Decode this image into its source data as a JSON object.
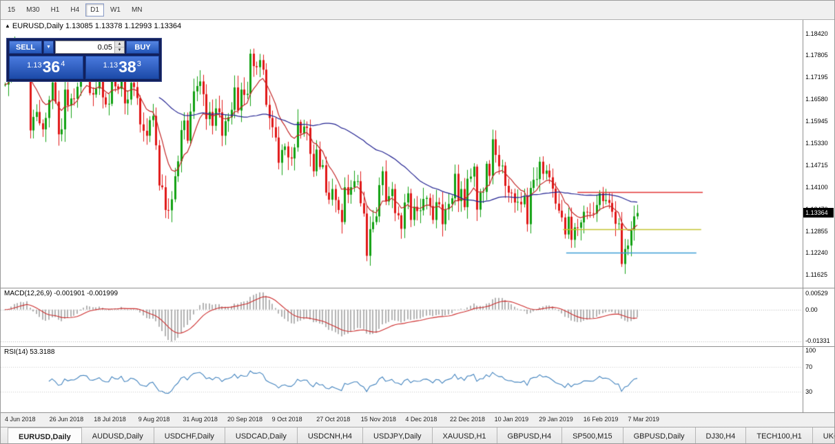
{
  "toolbar": {
    "timeframes": [
      {
        "label": "15",
        "active": false
      },
      {
        "label": "M30",
        "active": false
      },
      {
        "label": "H1",
        "active": false
      },
      {
        "label": "H4",
        "active": false
      },
      {
        "label": "D1",
        "active": true
      },
      {
        "label": "W1",
        "active": false
      },
      {
        "label": "MN",
        "active": false
      }
    ]
  },
  "chart": {
    "title_arrow": "▲",
    "symbol_label": "EURUSD,Daily",
    "ohlc_text": "1.13085 1.13378 1.12993 1.13364",
    "current_price": "1.13364",
    "price_axis": [
      "1.18420",
      "1.17805",
      "1.17195",
      "1.16580",
      "1.15945",
      "1.15330",
      "1.14715",
      "1.14100",
      "1.13470",
      "1.12855",
      "1.12240",
      "1.11625"
    ]
  },
  "trade_panel": {
    "sell_label": "SELL",
    "buy_label": "BUY",
    "volume": "0.05",
    "dropdown_icon": "▼",
    "spin_up_icon": "▲",
    "spin_down_icon": "▼",
    "sell_price_small": "1.13",
    "sell_price_big": "36",
    "sell_price_sup": "4",
    "buy_price_small": "1.13",
    "buy_price_big": "38",
    "buy_price_sup": "3"
  },
  "macd": {
    "label": "MACD(12,26,9) -0.001901 -0.001999",
    "axis": [
      "0.00529",
      "0.00",
      "-0.01331"
    ]
  },
  "rsi": {
    "label": "RSI(14) 53.3188",
    "axis": [
      "100",
      "70",
      "30"
    ],
    "levels": [
      70,
      30
    ]
  },
  "date_axis": [
    "4 Jun 2018",
    "26 Jun 2018",
    "18 Jul 2018",
    "9 Aug 2018",
    "31 Aug 2018",
    "20 Sep 2018",
    "9 Oct 2018",
    "27 Oct 2018",
    "15 Nov 2018",
    "4 Dec 2018",
    "22 Dec 2018",
    "10 Jan 2019",
    "29 Jan 2019",
    "16 Feb 2019",
    "7 Mar 2019"
  ],
  "tabs": [
    {
      "label": "EURUSD,Daily",
      "active": true
    },
    {
      "label": "AUDUSD,Daily",
      "active": false
    },
    {
      "label": "USDCHF,Daily",
      "active": false
    },
    {
      "label": "USDCAD,Daily",
      "active": false
    },
    {
      "label": "USDCNH,H4",
      "active": false
    },
    {
      "label": "USDJPY,Daily",
      "active": false
    },
    {
      "label": "XAUUSD,H1",
      "active": false
    },
    {
      "label": "GBPUSD,H4",
      "active": false
    },
    {
      "label": "SP500,M15",
      "active": false
    },
    {
      "label": "GBPUSD,Daily",
      "active": false
    },
    {
      "label": "DJ30,H4",
      "active": false
    },
    {
      "label": "TECH100,H1",
      "active": false
    },
    {
      "label": "UKC",
      "active": false
    }
  ],
  "chart_data": {
    "type": "candlestick",
    "title": "EURUSD,Daily",
    "price_min": 1.1128,
    "price_max": 1.188,
    "bull_color": "#10a010",
    "bear_color": "#e01616",
    "closes": [
      1.1698,
      1.1716,
      1.1775,
      1.1798,
      1.1768,
      1.1784,
      1.1745,
      1.179,
      1.1569,
      1.1607,
      1.1621,
      1.1589,
      1.1572,
      1.1604,
      1.1655,
      1.1704,
      1.165,
      1.1558,
      1.1572,
      1.1684,
      1.1639,
      1.1659,
      1.1658,
      1.1692,
      1.1745,
      1.1753,
      1.1744,
      1.1674,
      1.167,
      1.1687,
      1.1712,
      1.1662,
      1.1642,
      1.1644,
      1.1724,
      1.1693,
      1.1686,
      1.1732,
      1.1645,
      1.1656,
      1.1703,
      1.1691,
      1.166,
      1.1586,
      1.1568,
      1.1554,
      1.1598,
      1.161,
      1.1527,
      1.1414,
      1.1409,
      1.1345,
      1.1344,
      1.1375,
      1.144,
      1.1482,
      1.157,
      1.1597,
      1.154,
      1.1622,
      1.1679,
      1.1694,
      1.1707,
      1.1671,
      1.1601,
      1.1621,
      1.1582,
      1.1631,
      1.162,
      1.1554,
      1.1595,
      1.1606,
      1.1627,
      1.169,
      1.1625,
      1.1684,
      1.1669,
      1.1672,
      1.1785,
      1.175,
      1.1747,
      1.1767,
      1.174,
      1.1641,
      1.1604,
      1.1578,
      1.1549,
      1.1478,
      1.1514,
      1.1524,
      1.1493,
      1.149,
      1.1521,
      1.1593,
      1.1561,
      1.158,
      1.1576,
      1.1503,
      1.1454,
      1.1515,
      1.1466,
      1.1471,
      1.1394,
      1.1374,
      1.1404,
      1.1373,
      1.1345,
      1.1311,
      1.1409,
      1.1388,
      1.1409,
      1.1426,
      1.1426,
      1.1364,
      1.1335,
      1.1216,
      1.1291,
      1.1311,
      1.1327,
      1.1415,
      1.1454,
      1.1369,
      1.1384,
      1.1404,
      1.1336,
      1.133,
      1.1292,
      1.1366,
      1.1392,
      1.1317,
      1.1354,
      1.1342,
      1.1344,
      1.1376,
      1.1379,
      1.1356,
      1.1317,
      1.1367,
      1.1361,
      1.1305,
      1.1347,
      1.1362,
      1.1378,
      1.1447,
      1.137,
      1.1404,
      1.1353,
      1.1433,
      1.1439,
      1.1467,
      1.1346,
      1.1394,
      1.1396,
      1.1475,
      1.1441,
      1.1544,
      1.15,
      1.1468,
      1.147,
      1.1413,
      1.1394,
      1.1392,
      1.1366,
      1.1368,
      1.1361,
      1.1383,
      1.1305,
      1.1407,
      1.143,
      1.1432,
      1.1481,
      1.1447,
      1.1456,
      1.1437,
      1.1405,
      1.1363,
      1.1343,
      1.1324,
      1.1276,
      1.1326,
      1.1261,
      1.1296,
      1.1295,
      1.131,
      1.134,
      1.1338,
      1.1336,
      1.1335,
      1.1359,
      1.1392,
      1.137,
      1.1373,
      1.1365,
      1.134,
      1.1306,
      1.1307,
      1.1193,
      1.1235,
      1.1245,
      1.1288,
      1.1327,
      1.13364
    ],
    "overlays": {
      "ma_fast": {
        "type": "ema",
        "period": 10,
        "color": "#c22424"
      },
      "ma_slow": {
        "type": "sma",
        "period": 50,
        "color": "#202090"
      }
    },
    "hlines": [
      {
        "price": 1.1395,
        "color": "#e03030",
        "x1": 0.718,
        "x2": 0.874
      },
      {
        "price": 1.129,
        "color": "#c3c32e",
        "x1": 0.7,
        "x2": 0.872
      },
      {
        "price": 1.1224,
        "color": "#3b9bd5",
        "x1": 0.704,
        "x2": 0.866
      }
    ],
    "indicators": {
      "macd": {
        "fast": 12,
        "slow": 26,
        "signal": 9,
        "hist_color": "#b2b2b2",
        "line_color": "#cc2929"
      },
      "rsi": {
        "period": 14,
        "color": "#3f81bd",
        "levels": [
          70,
          30
        ]
      }
    }
  }
}
